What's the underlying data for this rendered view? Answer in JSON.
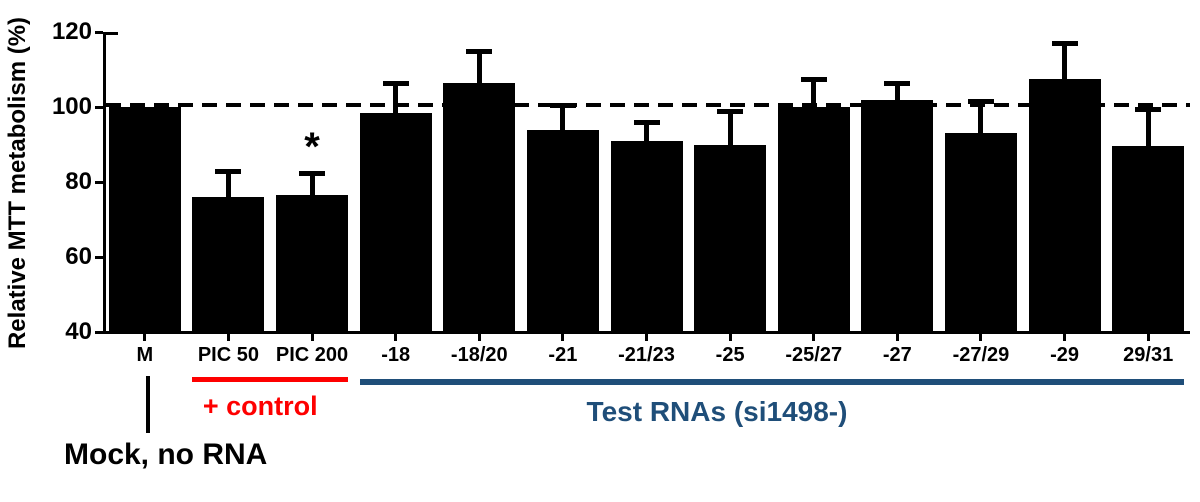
{
  "chart_data": {
    "type": "bar",
    "title": "",
    "xlabel": "",
    "ylabel": "Relative MTT metabolism (%)",
    "ylim": [
      40,
      120
    ],
    "yticks": [
      40,
      60,
      80,
      100,
      120
    ],
    "grid": "off",
    "legend": "none",
    "bar_color": "#000000",
    "reference_line_y": 100,
    "reference_line_style": "dashed",
    "categories": [
      "M",
      "PIC 50",
      "PIC 200",
      "-18",
      "-18/20",
      "-21",
      "-21/23",
      "-25",
      "-25/27",
      "-27",
      "-27/29",
      "-29",
      "29/31"
    ],
    "values": [
      100,
      76,
      76.5,
      98.5,
      106.5,
      94,
      91,
      90,
      100,
      102,
      93,
      107.5,
      89.5
    ],
    "errors_plus": [
      0,
      7,
      6,
      8,
      8.5,
      6.5,
      5,
      9,
      7.5,
      4.5,
      8.5,
      9.5,
      10
    ],
    "significance": [
      "",
      "",
      "*",
      "",
      "",
      "",
      "",
      "",
      "",
      "",
      "",
      "",
      ""
    ]
  },
  "annotations": {
    "control_group": {
      "label": "+ control",
      "color": "#fe0000",
      "start_category": "PIC 50",
      "end_category": "PIC 200"
    },
    "test_group": {
      "label": "Test RNAs (si1498-)",
      "color": "#1f4e79",
      "start_category": "-18",
      "end_category": "29/31"
    },
    "mock_group": {
      "label": "Mock, no RNA",
      "color": "#000000",
      "category": "M"
    }
  }
}
